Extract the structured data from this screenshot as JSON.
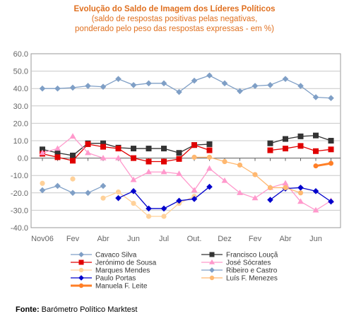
{
  "chart_data": {
    "type": "line",
    "title": "Evolução do Saldo  de Imagem dos Líderes Políticos",
    "subtitle": [
      "(saldo de respostas positivas pelas negativas,",
      "ponderado pelo peso das respostas expressas - em %)"
    ],
    "xlabel": "",
    "ylabel": "",
    "ylim": [
      -40,
      60
    ],
    "yticks": [
      "60.0",
      "50.0",
      "40.0",
      "30.0",
      "20.0",
      "10.0",
      "0.0",
      "-10.0",
      "-20.0",
      "-30.0",
      "-40.0"
    ],
    "yticks_values": [
      60,
      50,
      40,
      30,
      20,
      10,
      0,
      -10,
      -20,
      -30,
      -40
    ],
    "x_count": 20,
    "x_tick_labels": [
      {
        "index": 0,
        "label": "Nov06"
      },
      {
        "index": 2,
        "label": "Fev"
      },
      {
        "index": 4,
        "label": "Abr"
      },
      {
        "index": 6,
        "label": "Jun"
      },
      {
        "index": 8,
        "label": "Jul"
      },
      {
        "index": 10,
        "label": "Out."
      },
      {
        "index": 12,
        "label": "Dez"
      },
      {
        "index": 14,
        "label": "Fev"
      },
      {
        "index": 16,
        "label": "Abr"
      },
      {
        "index": 18,
        "label": "Jun"
      }
    ],
    "grid": true,
    "legend_position": "bottom",
    "series": [
      {
        "name": "Cavaco Silva",
        "color": "#7f9fc6",
        "marker": "diamond",
        "values": [
          40,
          40,
          40.5,
          41.5,
          41,
          45.5,
          42,
          43,
          43,
          38,
          44.5,
          47.5,
          43,
          38.5,
          41.5,
          42,
          45.5,
          41.5,
          35,
          34.5
        ]
      },
      {
        "name": "Francisco Louçã",
        "color": "#333333",
        "marker": "square",
        "values": [
          5,
          3,
          1.5,
          8.5,
          8.5,
          6,
          5.5,
          5.5,
          5.5,
          3,
          7.5,
          8,
          null,
          null,
          null,
          8.5,
          11,
          12.5,
          13,
          10
        ]
      },
      {
        "name": "Jerónimo de Sousa",
        "color": "#e00000",
        "marker": "square",
        "values": [
          2.5,
          0.5,
          -1.5,
          8,
          6.5,
          5.5,
          0,
          -2,
          -2,
          -0.5,
          7.5,
          4.5,
          null,
          null,
          null,
          4.5,
          5.5,
          7,
          4,
          5
        ]
      },
      {
        "name": "José Sócrates",
        "color": "#ff99cc",
        "marker": "triangle",
        "values": [
          3,
          5.5,
          12.5,
          3,
          0,
          0,
          -12.5,
          -8,
          -8,
          -9,
          -18.5,
          -6,
          -13,
          -20,
          -23,
          -17,
          -14.5,
          -25,
          -30,
          -24.5
        ]
      },
      {
        "name": "Marques Mendes",
        "color": "#ffd199",
        "marker": "circle",
        "values": [
          -14.5,
          null,
          -12,
          null,
          -23,
          -19.5,
          -26,
          -33.5,
          -33.5,
          -26,
          -22,
          null,
          null,
          null,
          null,
          null,
          null,
          null,
          null,
          null
        ]
      },
      {
        "name": "Ribeiro e Castro",
        "color": "#7f9fc6",
        "marker": "diamond",
        "values": [
          -18.5,
          -16,
          -20,
          -20,
          -16,
          null,
          null,
          null,
          null,
          null,
          null,
          null,
          null,
          null,
          null,
          null,
          null,
          null,
          null,
          null
        ]
      },
      {
        "name": "Paulo Portas",
        "color": "#0000cc",
        "marker": "diamond",
        "values": [
          null,
          null,
          null,
          null,
          null,
          -23,
          -19,
          -29,
          -29,
          -24.5,
          -23.5,
          -16.5,
          null,
          null,
          null,
          -24,
          -17.5,
          -17,
          -19,
          -25
        ]
      },
      {
        "name": "Luís F. Menezes",
        "color": "#ffb870",
        "marker": "circle",
        "values": [
          null,
          null,
          null,
          null,
          null,
          null,
          null,
          null,
          null,
          null,
          0.5,
          0.5,
          -2,
          -4,
          -9.5,
          -17,
          -17,
          -20,
          null,
          null
        ]
      },
      {
        "name": "Manuela F. Leite",
        "color": "#ff7f27",
        "marker": "circle",
        "values": [
          null,
          null,
          null,
          null,
          null,
          null,
          null,
          null,
          null,
          null,
          null,
          null,
          null,
          null,
          null,
          null,
          null,
          null,
          -4.5,
          -3
        ]
      }
    ]
  },
  "source": {
    "label": "Fonte:",
    "text": " Barómetro Político Marktest"
  }
}
